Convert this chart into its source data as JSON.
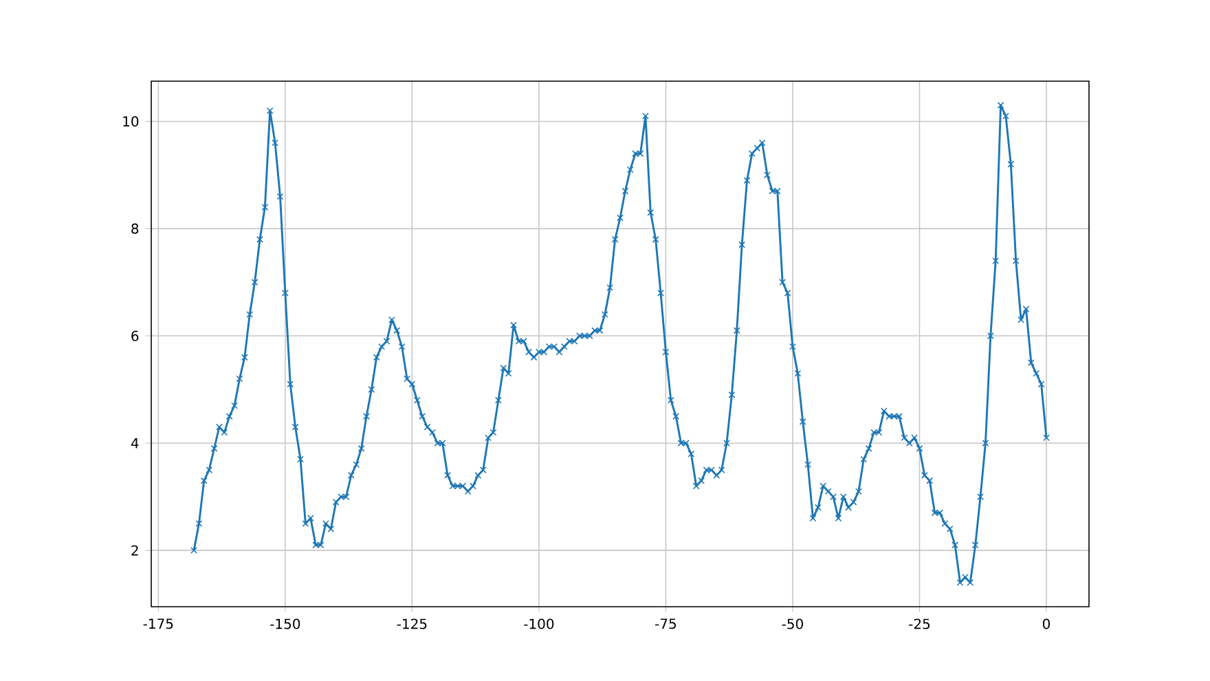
{
  "chart_data": {
    "type": "line",
    "x": [
      -168,
      -167,
      -166,
      -165,
      -164,
      -163,
      -162,
      -161,
      -160,
      -159,
      -158,
      -157,
      -156,
      -155,
      -154,
      -153,
      -152,
      -151,
      -150,
      -149,
      -148,
      -147,
      -146,
      -145,
      -144,
      -143,
      -142,
      -141,
      -140,
      -139,
      -138,
      -137,
      -136,
      -135,
      -134,
      -133,
      -132,
      -131,
      -130,
      -129,
      -128,
      -127,
      -126,
      -125,
      -124,
      -123,
      -122,
      -121,
      -120,
      -119,
      -118,
      -117,
      -116,
      -115,
      -114,
      -113,
      -112,
      -111,
      -110,
      -109,
      -108,
      -107,
      -106,
      -105,
      -104,
      -103,
      -102,
      -101,
      -100,
      -99,
      -98,
      -97,
      -96,
      -95,
      -94,
      -93,
      -92,
      -91,
      -90,
      -89,
      -88,
      -87,
      -86,
      -85,
      -84,
      -83,
      -82,
      -81,
      -80,
      -79,
      -78,
      -77,
      -76,
      -75,
      -74,
      -73,
      -72,
      -71,
      -70,
      -69,
      -68,
      -67,
      -66,
      -65,
      -64,
      -63,
      -62,
      -61,
      -60,
      -59,
      -58,
      -57,
      -56,
      -55,
      -54,
      -53,
      -52,
      -51,
      -50,
      -49,
      -48,
      -47,
      -46,
      -45,
      -44,
      -43,
      -42,
      -41,
      -40,
      -39,
      -38,
      -37,
      -36,
      -35,
      -34,
      -33,
      -32,
      -31,
      -30,
      -29,
      -28,
      -27,
      -26,
      -25,
      -24,
      -23,
      -22,
      -21,
      -20,
      -19,
      -18,
      -17,
      -16,
      -15,
      -14,
      -13,
      -12,
      -11,
      -10,
      -9,
      -8,
      -7,
      -6,
      -5,
      -4,
      -3,
      -2,
      -1,
      0
    ],
    "values": [
      2.0,
      2.5,
      3.3,
      3.5,
      3.9,
      4.3,
      4.2,
      4.5,
      4.7,
      5.2,
      5.6,
      6.4,
      7.0,
      7.8,
      8.4,
      10.2,
      9.6,
      8.6,
      6.8,
      5.1,
      4.3,
      3.7,
      2.5,
      2.6,
      2.1,
      2.1,
      2.5,
      2.4,
      2.9,
      3.0,
      3.0,
      3.4,
      3.6,
      3.9,
      4.5,
      5.0,
      5.6,
      5.8,
      5.9,
      6.3,
      6.1,
      5.8,
      5.2,
      5.1,
      4.8,
      4.5,
      4.3,
      4.2,
      4.0,
      4.0,
      3.4,
      3.2,
      3.2,
      3.2,
      3.1,
      3.2,
      3.4,
      3.5,
      4.1,
      4.2,
      4.8,
      5.4,
      5.3,
      6.2,
      5.9,
      5.9,
      5.7,
      5.6,
      5.7,
      5.7,
      5.8,
      5.8,
      5.7,
      5.8,
      5.9,
      5.9,
      6.0,
      6.0,
      6.0,
      6.1,
      6.1,
      6.4,
      6.9,
      7.8,
      8.2,
      8.7,
      9.1,
      9.4,
      9.4,
      10.1,
      8.3,
      7.8,
      6.8,
      5.7,
      4.8,
      4.5,
      4.0,
      4.0,
      3.8,
      3.2,
      3.3,
      3.5,
      3.5,
      3.4,
      3.5,
      4.0,
      4.9,
      6.1,
      7.7,
      8.9,
      9.4,
      9.5,
      9.6,
      9.0,
      8.7,
      8.7,
      7.0,
      6.8,
      5.8,
      5.3,
      4.4,
      3.6,
      2.6,
      2.8,
      3.2,
      3.1,
      3.0,
      2.6,
      3.0,
      2.8,
      2.9,
      3.1,
      3.7,
      3.9,
      4.2,
      4.2,
      4.6,
      4.5,
      4.5,
      4.5,
      4.1,
      4.0,
      4.1,
      3.9,
      3.4,
      3.3,
      2.7,
      2.7,
      2.5,
      2.4,
      2.1,
      1.4,
      1.5,
      1.4,
      2.1,
      3.0,
      4.0,
      6.0,
      7.4,
      10.3,
      10.1,
      9.2,
      7.4,
      6.3,
      6.5,
      5.5,
      5.3,
      5.1,
      4.1
    ],
    "color": "#1f77b4",
    "xlim": [
      -176.4,
      8.4
    ],
    "ylim": [
      0.95,
      10.75
    ],
    "xticks": [
      -175,
      -150,
      -125,
      -100,
      -75,
      -50,
      -25,
      0
    ],
    "yticks": [
      2,
      4,
      6,
      8,
      10
    ],
    "grid": true,
    "marker": "cross",
    "line_style": "solid"
  }
}
